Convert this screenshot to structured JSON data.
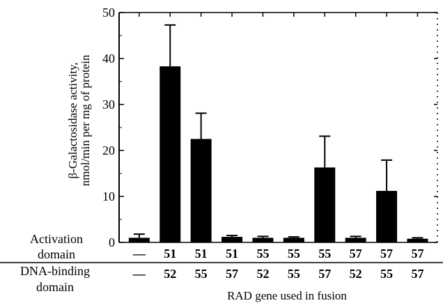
{
  "chart_data": {
    "type": "bar",
    "title": "",
    "ylabel_line1": "β-Galactosidase activity,",
    "ylabel_line2": "nmol/min per mg of protein",
    "xlabel": "RAD gene used in fusion",
    "ylim": [
      0,
      50
    ],
    "yticks": [
      0,
      10,
      20,
      30,
      40,
      50
    ],
    "grid": false,
    "row_labels": {
      "activation_line1": "Activation",
      "activation_line2": "domain",
      "dna_binding_line1": "DNA-binding",
      "dna_binding_line2": "domain"
    },
    "categories": [
      {
        "activation": "—",
        "dna_binding": "—",
        "value": 1.0,
        "error": 0.8
      },
      {
        "activation": "51",
        "dna_binding": "52",
        "value": 38.3,
        "error": 9.0
      },
      {
        "activation": "51",
        "dna_binding": "55",
        "value": 22.5,
        "error": 5.6
      },
      {
        "activation": "51",
        "dna_binding": "57",
        "value": 1.2,
        "error": 0.3
      },
      {
        "activation": "55",
        "dna_binding": "52",
        "value": 1.0,
        "error": 0.3
      },
      {
        "activation": "55",
        "dna_binding": "55",
        "value": 1.0,
        "error": 0.2
      },
      {
        "activation": "55",
        "dna_binding": "57",
        "value": 16.3,
        "error": 6.8
      },
      {
        "activation": "57",
        "dna_binding": "52",
        "value": 1.0,
        "error": 0.3
      },
      {
        "activation": "57",
        "dna_binding": "55",
        "value": 11.2,
        "error": 6.7
      },
      {
        "activation": "57",
        "dna_binding": "57",
        "value": 0.8,
        "error": 0.2
      }
    ],
    "bar_color": "#000000"
  }
}
